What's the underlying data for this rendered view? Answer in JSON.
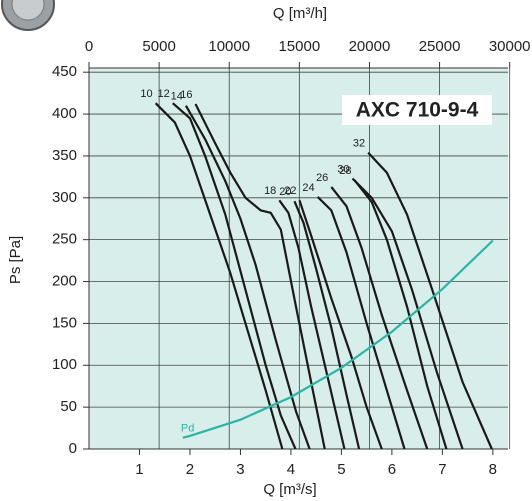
{
  "chart_data": {
    "type": "line",
    "title": "AXC 710-9-4",
    "x_label": "Q [m³/s]",
    "x2_label": "Q [m³/h]",
    "y_label": "Ps [Pa]",
    "xlim": [
      0,
      8.3
    ],
    "xticks": [
      1,
      2,
      3,
      4,
      5,
      6,
      7,
      8
    ],
    "x2lim": [
      0,
      29880
    ],
    "x2ticks": [
      0,
      5000,
      10000,
      15000,
      20000,
      25000,
      30000
    ],
    "ylim": [
      0,
      455
    ],
    "yticks": [
      0,
      50,
      100,
      150,
      200,
      250,
      300,
      350,
      400,
      450
    ],
    "grid": true,
    "background": "#d8eeea",
    "series": [
      {
        "name": "10",
        "color": "#1a1a1a",
        "x": [
          1.32,
          1.7,
          2.0,
          2.4,
          2.8,
          3.2,
          3.5,
          3.83
        ],
        "values": [
          413,
          390,
          350,
          280,
          210,
          130,
          70,
          0
        ]
      },
      {
        "name": "12",
        "color": "#1a1a1a",
        "x": [
          1.66,
          2.0,
          2.3,
          2.7,
          3.1,
          3.5,
          3.8,
          4.09
        ],
        "values": [
          413,
          395,
          350,
          280,
          190,
          100,
          40,
          0
        ]
      },
      {
        "name": "14",
        "color": "#1a1a1a",
        "x": [
          1.92,
          2.3,
          2.7,
          3.0,
          3.3,
          3.7,
          4.1,
          4.37
        ],
        "values": [
          410,
          370,
          320,
          275,
          220,
          130,
          45,
          0
        ]
      },
      {
        "name": "16",
        "color": "#1a1a1a",
        "x": [
          2.11,
          2.5,
          2.8,
          3.1,
          3.4,
          3.6,
          3.8,
          4.1,
          4.4,
          4.67
        ],
        "values": [
          412,
          365,
          330,
          300,
          285,
          282,
          262,
          170,
          80,
          0
        ]
      },
      {
        "name": "18",
        "color": "#1a1a1a",
        "x": [
          3.77,
          3.95,
          4.15,
          4.4,
          4.75,
          5.06
        ],
        "values": [
          297,
          282,
          240,
          170,
          80,
          0
        ]
      },
      {
        "name": "20",
        "color": "#1a1a1a",
        "x": [
          4.07,
          4.25,
          4.5,
          4.8,
          5.1,
          5.35
        ],
        "values": [
          296,
          270,
          215,
          145,
          65,
          0
        ]
      },
      {
        "name": "22",
        "color": "#1a1a1a",
        "x": [
          4.17,
          4.4,
          4.8,
          5.2,
          5.5,
          5.8
        ],
        "values": [
          297,
          255,
          180,
          110,
          50,
          0
        ]
      },
      {
        "name": "24",
        "color": "#1a1a1a",
        "x": [
          4.53,
          4.8,
          5.1,
          5.5,
          5.9,
          6.25
        ],
        "values": [
          301,
          285,
          235,
          150,
          70,
          0
        ]
      },
      {
        "name": "26",
        "color": "#1a1a1a",
        "x": [
          4.8,
          5.1,
          5.4,
          5.8,
          6.3,
          6.7
        ],
        "values": [
          313,
          290,
          240,
          160,
          70,
          0
        ]
      },
      {
        "name": "28",
        "color": "#1a1a1a",
        "x": [
          5.26,
          5.6,
          5.9,
          6.3,
          6.7,
          7.08
        ],
        "values": [
          321,
          295,
          250,
          170,
          75,
          0
        ]
      },
      {
        "name": "30",
        "color": "#1a1a1a",
        "x": [
          5.22,
          5.6,
          6.0,
          6.4,
          6.9,
          7.4
        ],
        "values": [
          323,
          300,
          260,
          190,
          90,
          0
        ]
      },
      {
        "name": "32",
        "color": "#1a1a1a",
        "x": [
          5.53,
          5.9,
          6.3,
          6.8,
          7.4,
          7.98
        ],
        "values": [
          354,
          330,
          280,
          190,
          80,
          0
        ]
      },
      {
        "name": "Pd",
        "color": "#2ab5a5",
        "x": [
          1.86,
          2,
          3,
          4,
          5,
          6,
          7,
          8
        ],
        "values": [
          13.5,
          15.6,
          35,
          62,
          97,
          140,
          191,
          249
        ]
      }
    ]
  }
}
